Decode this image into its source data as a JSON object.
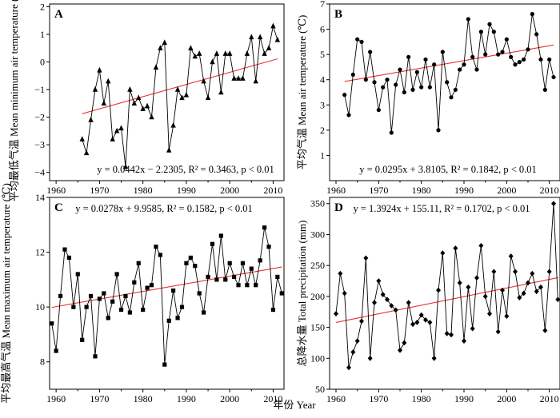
{
  "figure": {
    "shared_xlabel": "年份 Year",
    "line_color": "#000000",
    "trend_color": "#e8322f"
  },
  "chart_data": [
    {
      "panel": "A",
      "type": "line",
      "marker": "triangle",
      "ylabel": "平均最低气温 Mean minimum air temperature (℃)",
      "xlim": [
        1958.5,
        2012.5
      ],
      "ylim": [
        -4.3,
        2.1
      ],
      "xticks": [
        1960,
        1970,
        1980,
        1990,
        2000,
        2010
      ],
      "yticks": [
        -4,
        -3,
        -2,
        -1,
        0,
        1,
        2
      ],
      "ytick_labels": [
        "−4",
        "−3",
        "−2",
        "−1",
        "0",
        "1",
        "2"
      ],
      "x": [
        1966,
        1967,
        1968,
        1969,
        1970,
        1971,
        1972,
        1973,
        1974,
        1975,
        1976,
        1977,
        1978,
        1979,
        1980,
        1981,
        1982,
        1983,
        1984,
        1985,
        1986,
        1987,
        1988,
        1989,
        1990,
        1991,
        1992,
        1993,
        1994,
        1995,
        1996,
        1997,
        1998,
        1999,
        2000,
        2001,
        2002,
        2003,
        2004,
        2005,
        2006,
        2007,
        2008,
        2009,
        2010,
        2011
      ],
      "y": [
        -2.8,
        -3.3,
        -2.1,
        -1.0,
        -0.3,
        -1.5,
        -0.7,
        -2.8,
        -2.5,
        -2.4,
        -3.8,
        -1.0,
        -1.5,
        -1.3,
        -1.7,
        -1.6,
        -2.0,
        -0.2,
        0.5,
        0.7,
        -3.2,
        -2.3,
        -1.0,
        -1.3,
        -1.2,
        0.5,
        0.2,
        0.3,
        -0.7,
        -1.3,
        0.0,
        0.3,
        -1.1,
        0.3,
        0.3,
        -0.6,
        -0.6,
        -0.6,
        0.3,
        0.9,
        -0.7,
        0.9,
        0.3,
        0.5,
        1.3,
        0.8
      ],
      "trend": {
        "slope": 0.0442,
        "intercept": -2.2305,
        "x_range": [
          1966,
          2011
        ]
      },
      "equation": "y = 0.0442x − 2.2305, R² = 0.3463, p < 0.01"
    },
    {
      "panel": "B",
      "type": "line",
      "marker": "circle",
      "ylabel": "平均气温 Mean air temperature (℃)",
      "xlim": [
        1958.5,
        2012.5
      ],
      "ylim": [
        0,
        7
      ],
      "xticks": [
        1960,
        1970,
        1980,
        1990,
        2000,
        2010
      ],
      "yticks": [
        1,
        2,
        3,
        4,
        5,
        6,
        7
      ],
      "ytick_labels": [
        "1",
        "2",
        "3",
        "4",
        "5",
        "6",
        "7"
      ],
      "x": [
        1962,
        1963,
        1964,
        1965,
        1966,
        1967,
        1968,
        1969,
        1970,
        1971,
        1972,
        1973,
        1974,
        1975,
        1976,
        1977,
        1978,
        1979,
        1980,
        1981,
        1982,
        1983,
        1984,
        1985,
        1986,
        1987,
        1988,
        1989,
        1990,
        1991,
        1992,
        1993,
        1994,
        1995,
        1996,
        1997,
        1998,
        1999,
        2000,
        2001,
        2002,
        2003,
        2004,
        2005,
        2006,
        2007,
        2008,
        2009,
        2010,
        2011
      ],
      "y": [
        3.4,
        2.6,
        4.2,
        5.6,
        5.5,
        4.0,
        5.1,
        3.9,
        2.8,
        3.7,
        4.0,
        1.9,
        3.8,
        4.4,
        3.5,
        4.9,
        3.6,
        4.3,
        3.7,
        4.8,
        3.7,
        4.6,
        2.0,
        5.1,
        3.9,
        3.3,
        3.6,
        4.4,
        4.6,
        6.4,
        4.9,
        4.4,
        5.9,
        5.0,
        6.2,
        5.9,
        5.0,
        5.1,
        5.6,
        4.9,
        4.6,
        4.7,
        4.8,
        5.2,
        6.6,
        5.8,
        4.8,
        3.6,
        4.8,
        4.1
      ],
      "trend": {
        "slope": 0.0295,
        "intercept": 3.8105,
        "x_range": [
          1962,
          2011
        ]
      },
      "equation": "y = 0.0295x + 3.8105, R² = 0.1842, p < 0.01"
    },
    {
      "panel": "C",
      "type": "line",
      "marker": "square",
      "ylabel": "平均最高气温 Mean maximum air temperature (℃)",
      "xlim": [
        1958.5,
        2012.5
      ],
      "ylim": [
        7,
        14
      ],
      "xticks": [
        1960,
        1970,
        1980,
        1990,
        2000,
        2010
      ],
      "yticks": [
        8,
        10,
        12,
        14
      ],
      "ytick_labels": [
        "8",
        "10",
        "12",
        "14"
      ],
      "x": [
        1959,
        1960,
        1961,
        1962,
        1963,
        1964,
        1965,
        1966,
        1967,
        1968,
        1969,
        1970,
        1971,
        1972,
        1973,
        1974,
        1975,
        1976,
        1977,
        1978,
        1979,
        1980,
        1981,
        1982,
        1983,
        1984,
        1985,
        1986,
        1987,
        1988,
        1989,
        1990,
        1991,
        1992,
        1993,
        1994,
        1995,
        1996,
        1997,
        1998,
        1999,
        2000,
        2001,
        2002,
        2003,
        2004,
        2005,
        2006,
        2007,
        2008,
        2009,
        2010,
        2011,
        2012
      ],
      "y": [
        9.4,
        8.4,
        10.4,
        12.1,
        11.8,
        10.0,
        11.2,
        8.8,
        10.0,
        10.4,
        8.2,
        10.3,
        10.5,
        9.6,
        10.2,
        11.2,
        9.9,
        10.4,
        9.8,
        10.9,
        11.6,
        9.9,
        10.7,
        10.8,
        12.2,
        11.9,
        7.9,
        9.5,
        10.6,
        9.6,
        10.0,
        11.6,
        11.8,
        11.5,
        10.5,
        9.8,
        11.1,
        12.3,
        11.0,
        12.6,
        11.0,
        11.6,
        11.1,
        10.8,
        11.6,
        10.8,
        11.4,
        10.8,
        11.7,
        12.9,
        12.2,
        9.9,
        11.1,
        10.5
      ],
      "trend": {
        "slope": 0.0278,
        "intercept": 9.9585,
        "x_range": [
          1959,
          2012
        ]
      },
      "equation": "y = 0.0278x + 9.9585, R² = 0.1582, p < 0.01"
    },
    {
      "panel": "D",
      "type": "line",
      "marker": "diamond",
      "ylabel": "总降水量 Total precipitation (mm)",
      "xlim": [
        1958.5,
        2012.5
      ],
      "ylim": [
        50,
        360
      ],
      "xticks": [
        1960,
        1970,
        1980,
        1990,
        2000,
        2010
      ],
      "yticks": [
        50,
        100,
        150,
        200,
        250,
        300,
        350
      ],
      "ytick_labels": [
        "50",
        "100",
        "150",
        "200",
        "250",
        "300",
        "350"
      ],
      "x": [
        1960,
        1961,
        1962,
        1963,
        1964,
        1965,
        1966,
        1967,
        1968,
        1969,
        1970,
        1971,
        1972,
        1973,
        1974,
        1975,
        1976,
        1977,
        1978,
        1979,
        1980,
        1981,
        1982,
        1983,
        1984,
        1985,
        1986,
        1987,
        1988,
        1989,
        1990,
        1991,
        1992,
        1993,
        1994,
        1995,
        1996,
        1997,
        1998,
        1999,
        2000,
        2001,
        2002,
        2003,
        2004,
        2005,
        2006,
        2007,
        2008,
        2009,
        2010,
        2011,
        2012
      ],
      "y": [
        172,
        237,
        205,
        85,
        110,
        128,
        160,
        262,
        100,
        190,
        225,
        203,
        195,
        185,
        178,
        113,
        125,
        190,
        155,
        158,
        170,
        162,
        158,
        100,
        210,
        270,
        140,
        138,
        278,
        222,
        128,
        215,
        148,
        230,
        282,
        200,
        172,
        240,
        143,
        210,
        168,
        265,
        240,
        198,
        205,
        222,
        237,
        208,
        215,
        145,
        240,
        350,
        195
      ],
      "trend": {
        "slope": 1.3924,
        "intercept": 155.11,
        "x_range": [
          1960,
          2012
        ]
      },
      "equation": "y = 1.3924x + 155.11, R² = 0.1702, p < 0.01"
    }
  ]
}
